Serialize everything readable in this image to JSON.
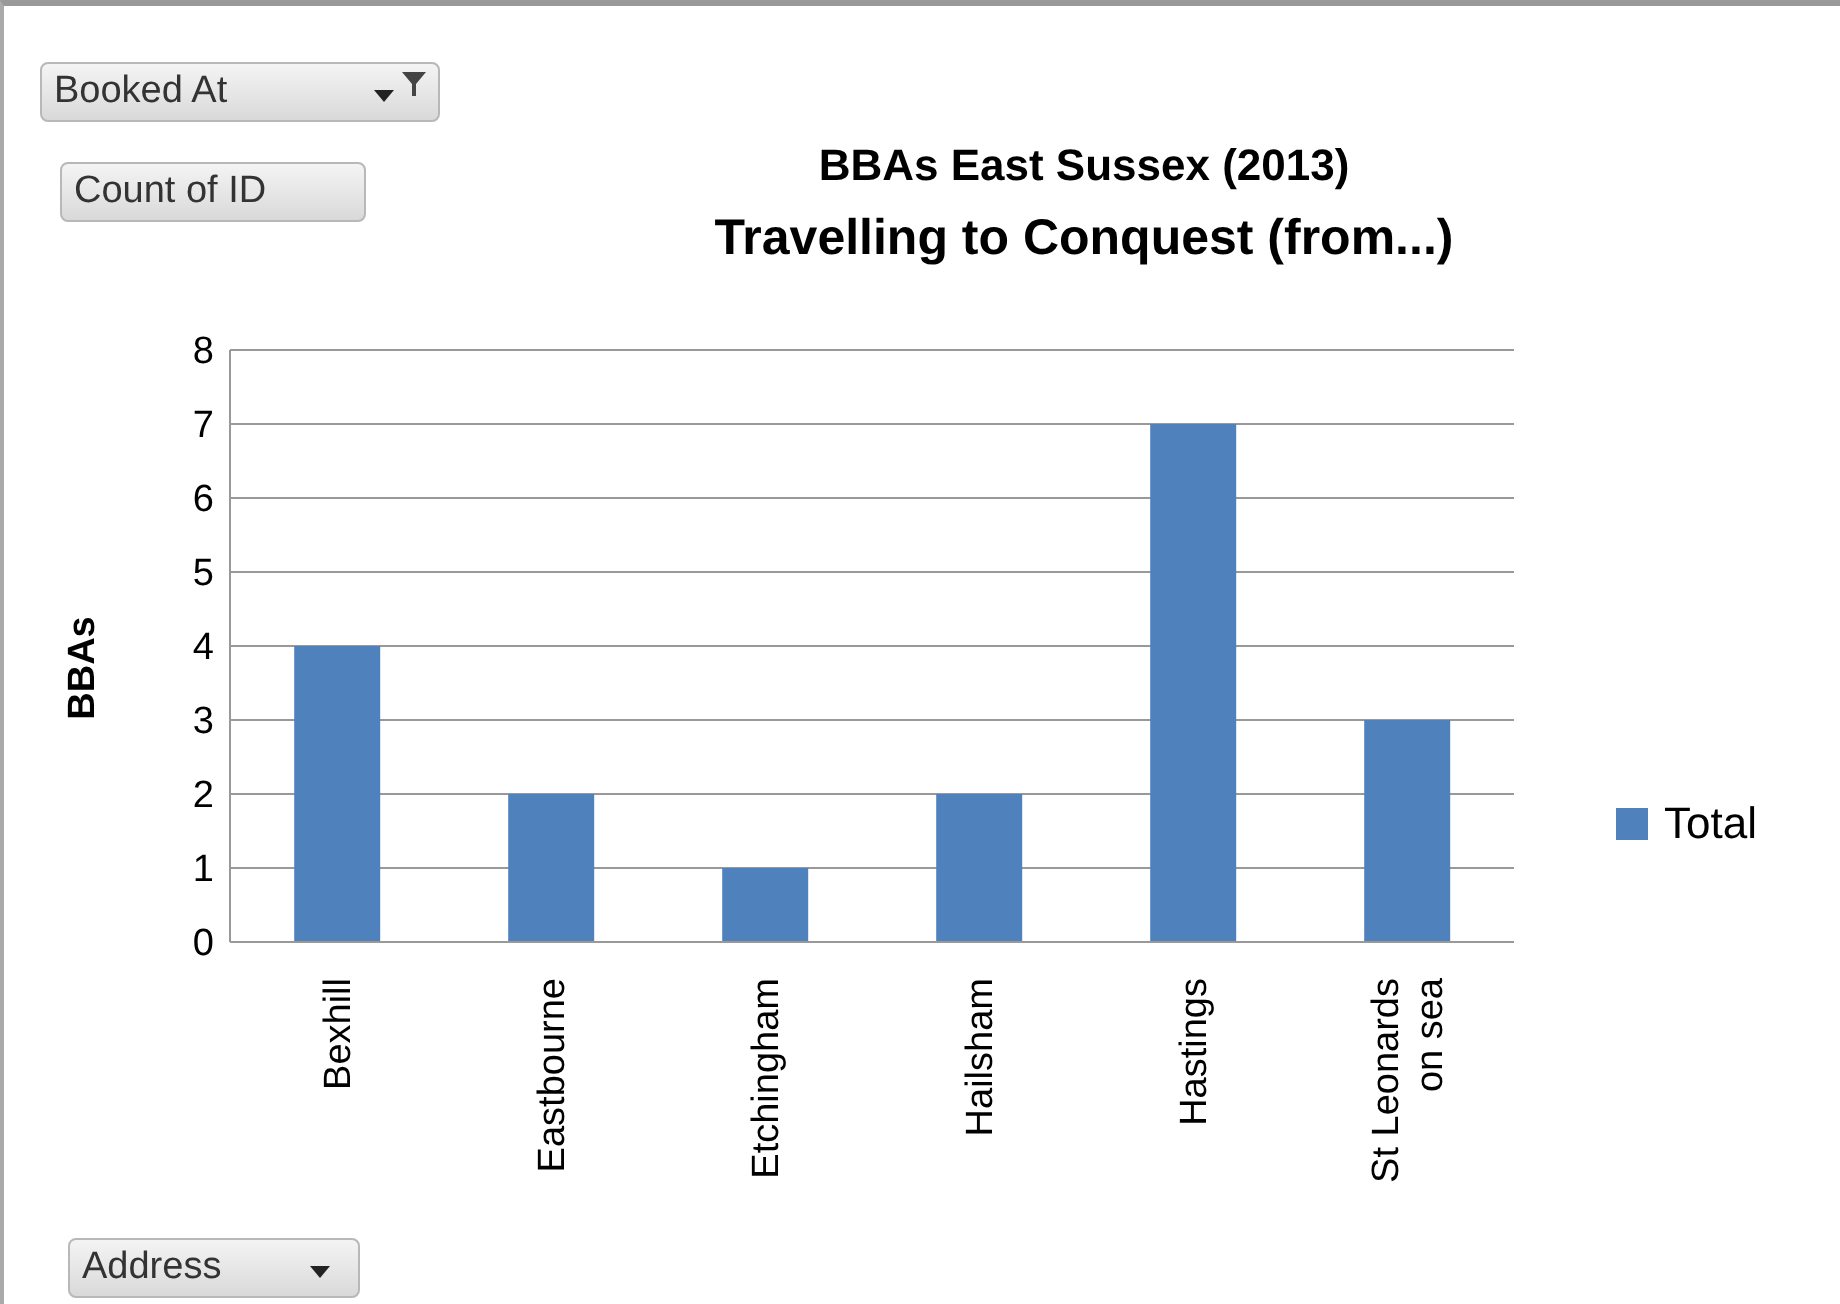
{
  "chart_data": {
    "type": "bar",
    "title": "BBAs East Sussex (2013)",
    "subtitle": "Travelling to Conquest (from...)",
    "ylabel": "BBAs",
    "categories": [
      "Bexhill",
      "Eastbourne",
      "Etchingham",
      "Hailsham",
      "Hastings",
      "St Leonards on sea"
    ],
    "series": [
      {
        "name": "Total",
        "color": "#4f81bd",
        "values": [
          4,
          2,
          1,
          2,
          7,
          3
        ]
      }
    ],
    "ylim": [
      0,
      8
    ],
    "yticks": [
      0,
      1,
      2,
      3,
      4,
      5,
      6,
      7,
      8
    ],
    "grid": "y",
    "legend": "right",
    "annotations": [
      "Booked At",
      "Count of ID",
      "Address"
    ]
  }
}
